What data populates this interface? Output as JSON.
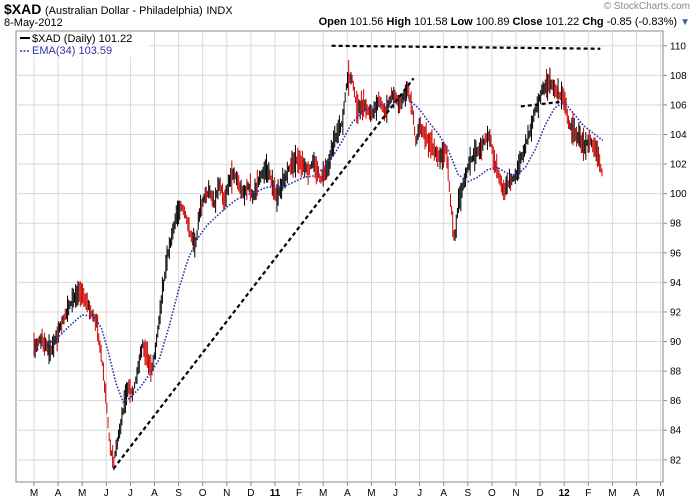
{
  "header": {
    "symbol": "$XAD",
    "name": "(Australian Dollar - Philadelphia)",
    "exchange": "INDX",
    "date": "8-May-2012",
    "copyright": "© StockCharts.com",
    "open_label": "Open",
    "open": "101.56",
    "high_label": "High",
    "high": "101.58",
    "low_label": "Low",
    "low": "100.89",
    "close_label": "Close",
    "close": "101.22",
    "chg_label": "Chg",
    "chg": "-0.85 (-0.83%)"
  },
  "legend": {
    "price": "$XAD (Daily) 101.22",
    "ema": "EMA(34) 103.59"
  },
  "colors": {
    "up_bar": "#000000",
    "down_bar": "#cc0000",
    "ema": "#3333aa",
    "grid": "#d8d8d8",
    "trendline": "#000000"
  },
  "chart_data": {
    "type": "line",
    "title": "$XAD (Australian Dollar - Philadelphia) INDX",
    "ylim": [
      80.5,
      111
    ],
    "y_ticks": [
      82,
      84,
      86,
      88,
      90,
      92,
      94,
      96,
      98,
      100,
      102,
      104,
      106,
      108,
      110
    ],
    "x_ticks": [
      "M",
      "A",
      "M",
      "J",
      "J",
      "A",
      "S",
      "O",
      "N",
      "D",
      "11",
      "F",
      "M",
      "A",
      "M",
      "J",
      "J",
      "A",
      "S",
      "O",
      "N",
      "D",
      "12",
      "F",
      "M",
      "A",
      "M"
    ],
    "bold_x_ticks": [
      "11",
      "12"
    ],
    "grid": true,
    "legend_position": "top-left",
    "price_path": [
      [
        0,
        89.5
      ],
      [
        0.3,
        90.2
      ],
      [
        0.7,
        89.3
      ],
      [
        1.0,
        90.6
      ],
      [
        1.3,
        91.8
      ],
      [
        1.6,
        92.8
      ],
      [
        1.9,
        93.3
      ],
      [
        2.2,
        92.6
      ],
      [
        2.6,
        91.2
      ],
      [
        2.8,
        89.0
      ],
      [
        3.0,
        86.0
      ],
      [
        3.15,
        83.0
      ],
      [
        3.3,
        81.8
      ],
      [
        3.5,
        83.6
      ],
      [
        3.7,
        85.3
      ],
      [
        3.9,
        87.0
      ],
      [
        4.1,
        86.4
      ],
      [
        4.3,
        88.0
      ],
      [
        4.5,
        89.8
      ],
      [
        4.7,
        89.0
      ],
      [
        4.9,
        88.0
      ],
      [
        5.1,
        90.2
      ],
      [
        5.3,
        92.8
      ],
      [
        5.5,
        95.5
      ],
      [
        5.7,
        97.0
      ],
      [
        5.9,
        98.5
      ],
      [
        6.1,
        99.2
      ],
      [
        6.3,
        98.5
      ],
      [
        6.5,
        97.2
      ],
      [
        6.7,
        96.5
      ],
      [
        6.9,
        99.0
      ],
      [
        7.1,
        99.8
      ],
      [
        7.3,
        100.2
      ],
      [
        7.5,
        99.3
      ],
      [
        7.7,
        100.8
      ],
      [
        7.9,
        99.5
      ],
      [
        8.1,
        100.9
      ],
      [
        8.3,
        101.4
      ],
      [
        8.5,
        100.6
      ],
      [
        8.7,
        100.0
      ],
      [
        8.9,
        100.5
      ],
      [
        9.1,
        99.8
      ],
      [
        9.4,
        101.2
      ],
      [
        9.7,
        101.6
      ],
      [
        9.95,
        100.4
      ],
      [
        10.1,
        99.7
      ],
      [
        10.3,
        100.6
      ],
      [
        10.6,
        101.8
      ],
      [
        10.9,
        102.3
      ],
      [
        11.1,
        102.0
      ],
      [
        11.4,
        101.6
      ],
      [
        11.6,
        102.2
      ],
      [
        11.9,
        101.0
      ],
      [
        12.2,
        101.8
      ],
      [
        12.5,
        103.8
      ],
      [
        12.8,
        104.8
      ],
      [
        13.0,
        107.8
      ],
      [
        13.2,
        107.8
      ],
      [
        13.4,
        105.8
      ],
      [
        13.7,
        106.0
      ],
      [
        14.0,
        105.3
      ],
      [
        14.3,
        106.3
      ],
      [
        14.6,
        105.5
      ],
      [
        14.9,
        106.8
      ],
      [
        15.2,
        106.0
      ],
      [
        15.5,
        107.2
      ],
      [
        15.7,
        105.6
      ],
      [
        15.85,
        103.4
      ],
      [
        16.0,
        104.6
      ],
      [
        16.2,
        104.0
      ],
      [
        16.5,
        103.3
      ],
      [
        16.8,
        102.4
      ],
      [
        17.1,
        103.0
      ],
      [
        17.3,
        99.3
      ],
      [
        17.45,
        96.8
      ],
      [
        17.6,
        99.2
      ],
      [
        17.8,
        100.6
      ],
      [
        18.1,
        102.2
      ],
      [
        18.4,
        102.8
      ],
      [
        18.7,
        103.6
      ],
      [
        18.9,
        104.0
      ],
      [
        19.1,
        102.2
      ],
      [
        19.3,
        101.1
      ],
      [
        19.5,
        100.0
      ],
      [
        19.7,
        100.8
      ],
      [
        20.0,
        101.2
      ],
      [
        20.2,
        102.3
      ],
      [
        20.5,
        103.8
      ],
      [
        20.8,
        105.6
      ],
      [
        21.1,
        107.1
      ],
      [
        21.4,
        107.6
      ],
      [
        21.7,
        106.8
      ],
      [
        22.0,
        106.5
      ],
      [
        22.2,
        104.7
      ],
      [
        22.5,
        104.0
      ],
      [
        22.8,
        103.3
      ],
      [
        23.1,
        103.6
      ],
      [
        23.4,
        102.5
      ],
      [
        23.6,
        101.2
      ]
    ],
    "ema_path": [
      [
        0,
        89.4
      ],
      [
        0.5,
        89.7
      ],
      [
        1.0,
        90.3
      ],
      [
        1.5,
        91.1
      ],
      [
        2.0,
        91.8
      ],
      [
        2.5,
        91.7
      ],
      [
        2.8,
        90.9
      ],
      [
        3.1,
        89.2
      ],
      [
        3.4,
        87.2
      ],
      [
        3.7,
        85.9
      ],
      [
        4.0,
        86.2
      ],
      [
        4.4,
        86.9
      ],
      [
        4.8,
        87.8
      ],
      [
        5.2,
        88.8
      ],
      [
        5.6,
        91.0
      ],
      [
        6.0,
        93.5
      ],
      [
        6.4,
        95.6
      ],
      [
        6.8,
        97.0
      ],
      [
        7.2,
        97.9
      ],
      [
        7.6,
        98.5
      ],
      [
        8.0,
        99.1
      ],
      [
        8.4,
        99.6
      ],
      [
        8.8,
        99.9
      ],
      [
        9.2,
        100.1
      ],
      [
        9.6,
        100.4
      ],
      [
        10.0,
        100.5
      ],
      [
        10.4,
        100.5
      ],
      [
        10.8,
        100.8
      ],
      [
        11.2,
        101.1
      ],
      [
        11.6,
        101.2
      ],
      [
        12.0,
        101.7
      ],
      [
        12.4,
        102.5
      ],
      [
        12.8,
        103.6
      ],
      [
        13.2,
        104.8
      ],
      [
        13.6,
        105.5
      ],
      [
        14.0,
        105.9
      ],
      [
        14.4,
        106.0
      ],
      [
        14.8,
        106.2
      ],
      [
        15.2,
        106.3
      ],
      [
        15.6,
        106.3
      ],
      [
        16.0,
        105.7
      ],
      [
        16.4,
        104.8
      ],
      [
        16.8,
        104.0
      ],
      [
        17.2,
        102.9
      ],
      [
        17.6,
        101.3
      ],
      [
        18.0,
        100.8
      ],
      [
        18.4,
        101.1
      ],
      [
        18.8,
        101.6
      ],
      [
        19.2,
        101.8
      ],
      [
        19.6,
        101.4
      ],
      [
        20.0,
        101.2
      ],
      [
        20.4,
        101.8
      ],
      [
        20.8,
        103.0
      ],
      [
        21.2,
        104.6
      ],
      [
        21.6,
        105.8
      ],
      [
        22.0,
        106.2
      ],
      [
        22.4,
        105.4
      ],
      [
        22.8,
        104.6
      ],
      [
        23.2,
        104.1
      ],
      [
        23.6,
        103.6
      ]
    ],
    "dashed_lines": [
      {
        "from": [
          12.35,
          110.0
        ],
        "to": [
          23.5,
          109.8
        ]
      },
      {
        "from": [
          3.3,
          81.4
        ],
        "to": [
          15.75,
          107.8
        ]
      },
      {
        "from": [
          20.2,
          105.9
        ],
        "to": [
          21.8,
          106.2
        ]
      }
    ]
  }
}
